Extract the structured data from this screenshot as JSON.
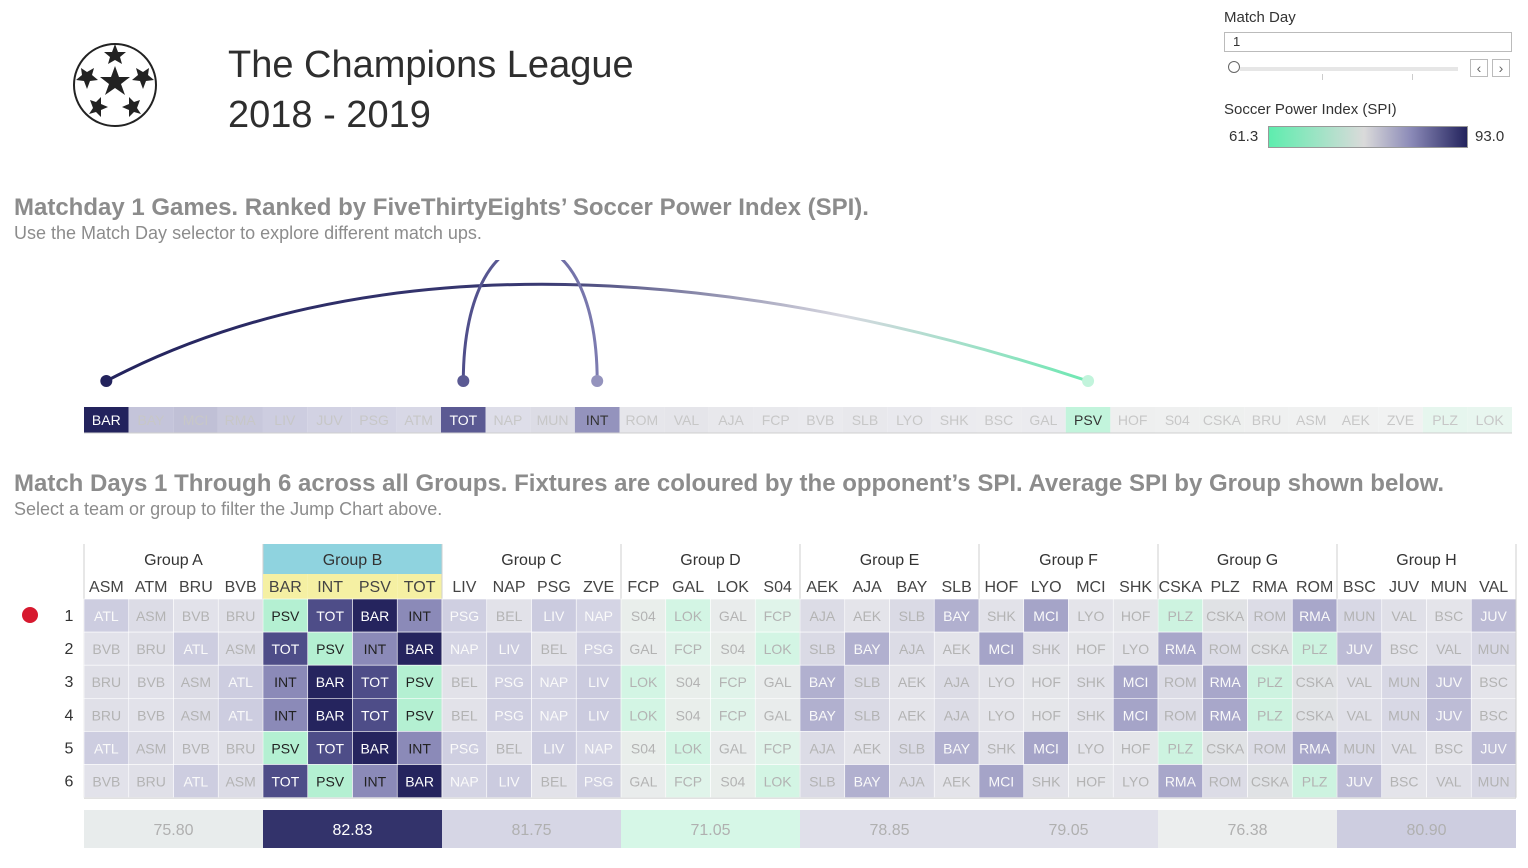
{
  "header": {
    "title": "The Champions League",
    "season": "2018 - 2019",
    "logo_icon": "starball-icon"
  },
  "controls": {
    "match_day_label": "Match Day",
    "match_day_value": "1",
    "slider_level": 0,
    "prev_icon": "chevron-left-icon",
    "next_icon": "chevron-right-icon"
  },
  "legend": {
    "label": "Soccer Power Index (SPI)",
    "min": "61.3",
    "max": "93.0",
    "colors": [
      "#5eedae",
      "#dadada",
      "#8a89b7",
      "#23235d"
    ]
  },
  "section1": {
    "title": "Matchday 1 Games. Ranked by FiveThirtyEights’ Soccer Power Index (SPI).",
    "subtitle": "Use the Match Day selector to explore different match ups."
  },
  "section2": {
    "title": "Match Days 1 Through 6 across all Groups. Fixtures are coloured by the opponent’s SPI. Average SPI by Group shown below.",
    "subtitle": "Select a team or group to filter the Jump Chart above."
  },
  "chart_data": [
    {
      "type": "jump",
      "teams": [
        "BAR",
        "BAY",
        "MCI",
        "RMA",
        "LIV",
        "JUV",
        "PSG",
        "ATM",
        "TOT",
        "NAP",
        "MUN",
        "INT",
        "ROM",
        "VAL",
        "AJA",
        "FCP",
        "BVB",
        "SLB",
        "LYO",
        "SHK",
        "BSC",
        "GAL",
        "PSV",
        "HOF",
        "S04",
        "CSKA",
        "BRU",
        "ASM",
        "AEK",
        "ZVE",
        "PLZ",
        "LOK"
      ],
      "highlighted": [
        "BAR",
        "TOT",
        "INT",
        "PSV"
      ],
      "matches": [
        {
          "home": "BAR",
          "away": "PSV"
        },
        {
          "home": "TOT",
          "away": "INT"
        }
      ]
    },
    {
      "type": "heatmap",
      "rows": [
        "1",
        "2",
        "3",
        "4",
        "5",
        "6"
      ],
      "selected_group": "Group B",
      "selected_row_marker": "1",
      "groups": [
        {
          "name": "Group A",
          "teams": [
            "ASM",
            "ATM",
            "BRU",
            "BVB"
          ],
          "avg": "75.80",
          "fixtures": [
            [
              "ATL",
              "ASM",
              "BVB",
              "BRU"
            ],
            [
              "BVB",
              "BRU",
              "ATL",
              "ASM"
            ],
            [
              "BRU",
              "BVB",
              "ASM",
              "ATL"
            ],
            [
              "BRU",
              "BVB",
              "ASM",
              "ATL"
            ],
            [
              "ATL",
              "ASM",
              "BVB",
              "BRU"
            ],
            [
              "BVB",
              "BRU",
              "ATL",
              "ASM"
            ]
          ]
        },
        {
          "name": "Group B",
          "teams": [
            "BAR",
            "INT",
            "PSV",
            "TOT"
          ],
          "avg": "82.83",
          "fixtures": [
            [
              "PSV",
              "TOT",
              "BAR",
              "INT"
            ],
            [
              "TOT",
              "PSV",
              "INT",
              "BAR"
            ],
            [
              "INT",
              "BAR",
              "TOT",
              "PSV"
            ],
            [
              "INT",
              "BAR",
              "TOT",
              "PSV"
            ],
            [
              "PSV",
              "TOT",
              "BAR",
              "INT"
            ],
            [
              "TOT",
              "PSV",
              "INT",
              "BAR"
            ]
          ]
        },
        {
          "name": "Group C",
          "teams": [
            "LIV",
            "NAP",
            "PSG",
            "ZVE"
          ],
          "avg": "81.75",
          "fixtures": [
            [
              "PSG",
              "BEL",
              "LIV",
              "NAP"
            ],
            [
              "NAP",
              "LIV",
              "BEL",
              "PSG"
            ],
            [
              "BEL",
              "PSG",
              "NAP",
              "LIV"
            ],
            [
              "BEL",
              "PSG",
              "NAP",
              "LIV"
            ],
            [
              "PSG",
              "BEL",
              "LIV",
              "NAP"
            ],
            [
              "NAP",
              "LIV",
              "BEL",
              "PSG"
            ]
          ]
        },
        {
          "name": "Group D",
          "teams": [
            "FCP",
            "GAL",
            "LOK",
            "S04"
          ],
          "avg": "71.05",
          "fixtures": [
            [
              "S04",
              "LOK",
              "GAL",
              "FCP"
            ],
            [
              "GAL",
              "FCP",
              "S04",
              "LOK"
            ],
            [
              "LOK",
              "S04",
              "FCP",
              "GAL"
            ],
            [
              "LOK",
              "S04",
              "FCP",
              "GAL"
            ],
            [
              "S04",
              "LOK",
              "GAL",
              "FCP"
            ],
            [
              "GAL",
              "FCP",
              "S04",
              "LOK"
            ]
          ]
        },
        {
          "name": "Group E",
          "teams": [
            "AEK",
            "AJA",
            "BAY",
            "SLB"
          ],
          "avg": "78.85",
          "fixtures": [
            [
              "AJA",
              "AEK",
              "SLB",
              "BAY"
            ],
            [
              "SLB",
              "BAY",
              "AJA",
              "AEK"
            ],
            [
              "BAY",
              "SLB",
              "AEK",
              "AJA"
            ],
            [
              "BAY",
              "SLB",
              "AEK",
              "AJA"
            ],
            [
              "AJA",
              "AEK",
              "SLB",
              "BAY"
            ],
            [
              "SLB",
              "BAY",
              "AJA",
              "AEK"
            ]
          ]
        },
        {
          "name": "Group F",
          "teams": [
            "HOF",
            "LYO",
            "MCI",
            "SHK"
          ],
          "avg": "79.05",
          "fixtures": [
            [
              "SHK",
              "MCI",
              "LYO",
              "HOF"
            ],
            [
              "MCI",
              "SHK",
              "HOF",
              "LYO"
            ],
            [
              "LYO",
              "HOF",
              "SHK",
              "MCI"
            ],
            [
              "LYO",
              "HOF",
              "SHK",
              "MCI"
            ],
            [
              "SHK",
              "MCI",
              "LYO",
              "HOF"
            ],
            [
              "MCI",
              "SHK",
              "HOF",
              "LYO"
            ]
          ]
        },
        {
          "name": "Group G",
          "teams": [
            "CSKA",
            "PLZ",
            "RMA",
            "ROM"
          ],
          "avg": "76.38",
          "fixtures": [
            [
              "PLZ",
              "CSKA",
              "ROM",
              "RMA"
            ],
            [
              "RMA",
              "ROM",
              "CSKA",
              "PLZ"
            ],
            [
              "ROM",
              "RMA",
              "PLZ",
              "CSKA"
            ],
            [
              "ROM",
              "RMA",
              "PLZ",
              "CSKA"
            ],
            [
              "PLZ",
              "CSKA",
              "ROM",
              "RMA"
            ],
            [
              "RMA",
              "ROM",
              "CSKA",
              "PLZ"
            ]
          ]
        },
        {
          "name": "Group H",
          "teams": [
            "BSC",
            "JUV",
            "MUN",
            "VAL"
          ],
          "avg": "80.90",
          "fixtures": [
            [
              "MUN",
              "VAL",
              "BSC",
              "JUV"
            ],
            [
              "JUV",
              "BSC",
              "VAL",
              "MUN"
            ],
            [
              "VAL",
              "MUN",
              "JUV",
              "BSC"
            ],
            [
              "VAL",
              "MUN",
              "JUV",
              "BSC"
            ],
            [
              "MUN",
              "VAL",
              "BSC",
              "JUV"
            ],
            [
              "JUV",
              "BSC",
              "VAL",
              "MUN"
            ]
          ]
        }
      ]
    }
  ],
  "team_colors": {
    "BAR": "#23235d",
    "BAY": "#c4c4da",
    "MCI": "#c0c0d6",
    "RMA": "#c8c8dc",
    "LIV": "#cdcde0",
    "JUV": "#d2d2e3",
    "PSG": "#d4d4e4",
    "ATM": "#d8d8e6",
    "TOT": "#5b5a93",
    "NAP": "#dedee9",
    "MUN": "#dcdce5",
    "INT": "#9493bd",
    "ROM": "#e6e6eb",
    "VAL": "#e5e5ea",
    "AJA": "#e8e8ec",
    "FCP": "#e9e9ed",
    "BVB": "#eaeaee",
    "SLB": "#e8e8ec",
    "LYO": "#e9e9ee",
    "SHK": "#ebebef",
    "BSC": "#ececef",
    "GAL": "#ebebef",
    "PSV": "#c2f4dc",
    "HOF": "#eeefef",
    "S04": "#eff0f0",
    "CSKA": "#eef0ef",
    "BRU": "#eff0f0",
    "ASM": "#f0f1f1",
    "AEK": "#f0f1f1",
    "ZVE": "#f1f2f2",
    "PLZ": "#e6f6ee",
    "LOK": "#e8f6ef",
    "ATL": "#cfcfe1",
    "BEL": "#e8e8ec"
  },
  "fixture_colors": {
    "ATL": "#cdcde0",
    "ASM": "#dcdce6",
    "BVB": "#e2e2ea",
    "BRU": "#e0e0e8",
    "PSV": "#b4f0d2",
    "TOT": "#4e4d88",
    "BAR": "#25245e",
    "INT": "#8b8ab8",
    "PSG": "#cfcfe1",
    "BEL": "#e2e2e9",
    "LIV": "#cbcbdf",
    "NAP": "#d4d4e4",
    "S04": "#e9eeeb",
    "LOK": "#d3f5e4",
    "GAL": "#e9ecec",
    "FCP": "#e0f4ea",
    "AJA": "#dcdce6",
    "AEK": "#e4e4ea",
    "SLB": "#dadae5",
    "BAY": "#b1b0cf",
    "SHK": "#e2e2e9",
    "MCI": "#a5a4c8",
    "LYO": "#e4e4ea",
    "HOF": "#e5e6ea",
    "PLZ": "#cdf3e0",
    "CSKA": "#e0e2e5",
    "ROM": "#dcdce6",
    "RMA": "#a8a7ca",
    "MUN": "#d8d8e5",
    "VAL": "#e0e0e8",
    "BSC": "#e4e4ea",
    "JUV": "#bdbcd6"
  },
  "avg_colors": [
    "#e8ecec",
    "#33336b",
    "#d6d6e5",
    "#d6f7e7",
    "#e0e0ea",
    "#e0e0ea",
    "#eceeee",
    "#cdcde0"
  ]
}
